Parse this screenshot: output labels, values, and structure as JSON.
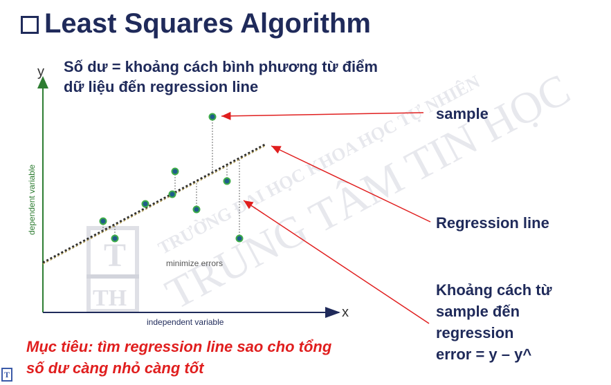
{
  "slide": {
    "title": "Least Squares Algorithm",
    "residual_definition": "Số dư = khoảng cách bình phương từ điểm dữ liệu đến regression line",
    "goal": "Mục tiêu: tìm regression line sao cho tổng số dư càng nhỏ càng tốt"
  },
  "callouts": {
    "sample": "sample",
    "regression_line": "Regression line",
    "distance_line1": "Khoảng cách từ",
    "distance_line2": "sample đến",
    "distance_line3": "regression",
    "distance_line4": "error = y – y^"
  },
  "diagram": {
    "y_axis_letter": "y",
    "x_axis_letter": "x",
    "y_axis_label": "dependent variable",
    "x_axis_label": "independent variable",
    "annotation": "minimize errors"
  },
  "watermark": {
    "line1": "TRƯỜNG ĐẠI HỌC KHOA HỌC TỰ NHIÊN",
    "line2": "TRUNG TÂM TIN HỌC",
    "logo_top": "T",
    "logo_bottom": "TH"
  },
  "footer": {
    "logo_letter": "T"
  },
  "colors": {
    "title": "#1f2a5a",
    "axis": "#2e7d32",
    "point_fill": "#1f5d8a",
    "point_ring": "#3fae49",
    "arrow": "#e01e1e",
    "goal_text": "#e01e1e"
  }
}
